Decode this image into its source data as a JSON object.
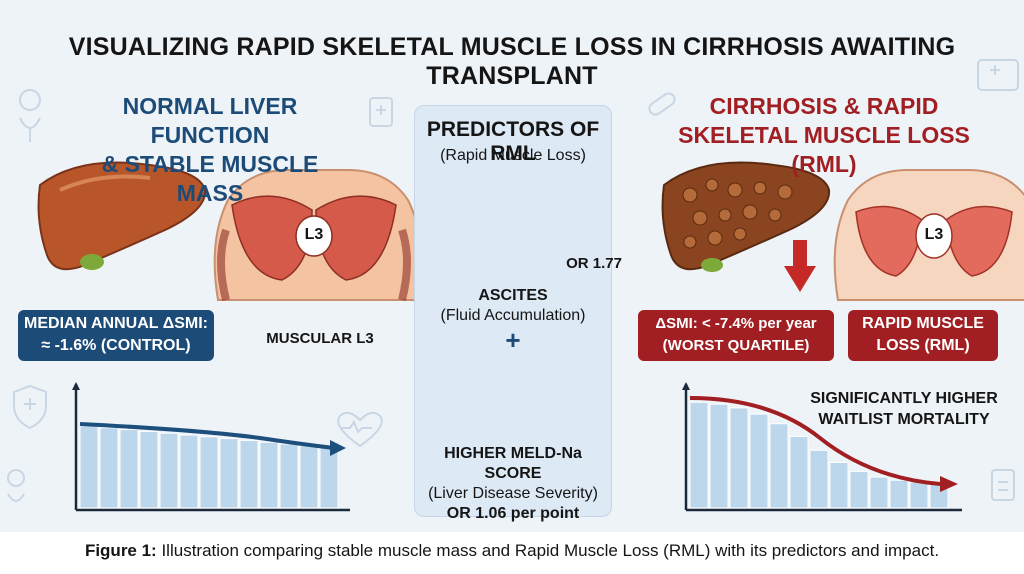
{
  "title": "VISUALIZING RAPID SKELETAL MUSCLE LOSS IN CIRRHOSIS AWAITING TRANSPLANT",
  "left": {
    "heading_line1": "NORMAL LIVER FUNCTION",
    "heading_line2": "& STABLE MUSCLE MASS",
    "l3_label": "L3",
    "smi_line1": "MEDIAN ANNUAL ΔSMI:",
    "smi_line2": "≈ -1.6% (CONTROL)",
    "muscle_caption": "MUSCULAR L3"
  },
  "center": {
    "title": "PREDICTORS OF RML",
    "subtitle": "(Rapid Muscle Loss)",
    "or_ascites": "OR 1.77",
    "ascites_line1": "ASCITES",
    "ascites_line2": "(Fluid Accumulation)",
    "plus": "+",
    "meld_line1": "HIGHER MELD-Na SCORE",
    "meld_line2": "(Liver Disease Severity)",
    "meld_line3": "OR 1.06 per point"
  },
  "right": {
    "heading_line1": "CIRRHOSIS & RAPID",
    "heading_line2": "SKELETAL MUSCLE LOSS (RML)",
    "l3_label": "L3",
    "smi_line1": "ΔSMI: < -7.4% per year",
    "smi_line2": "(WORST QUARTILE)",
    "rml_line1": "RAPID MUSCLE",
    "rml_line2": "LOSS (RML)",
    "mortality_line1": "SIGNIFICANTLY HIGHER",
    "mortality_line2": "WAITLIST MORTALITY"
  },
  "caption": {
    "label": "Figure 1:",
    "text": " Illustration comparing stable muscle mass and Rapid Muscle Loss (RML) with its predictors and impact."
  },
  "colors": {
    "navy": "#1c4b78",
    "dark_red": "#a11e22",
    "muscle_red": "#d65a4a",
    "liver_brown": "#b8562a",
    "bar_blue": "#bcd6ec"
  },
  "icons": [
    "stethoscope-icon",
    "clipboard-icon",
    "heart-icon",
    "shield-icon",
    "ambulance-icon",
    "pill-icon",
    "water-drop-icon",
    "bar-chart-icon"
  ]
}
